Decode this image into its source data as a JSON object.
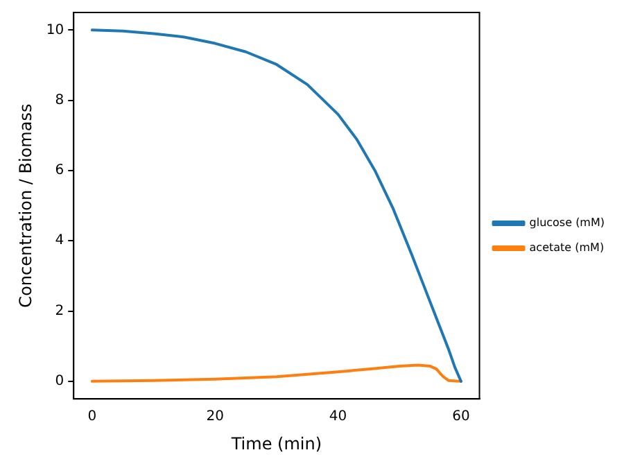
{
  "chart_data": {
    "type": "line",
    "xlabel": "Time (min)",
    "ylabel": "Concentration / Biomass",
    "xlim": [
      -3,
      63
    ],
    "xticks": [
      0,
      20,
      40,
      60
    ],
    "ylim": [
      -0.5,
      10.5
    ],
    "yticks": [
      0,
      2,
      4,
      6,
      8,
      10
    ],
    "grid": false,
    "legend": "right",
    "marker": "none",
    "line_style": "solid",
    "series": [
      {
        "name": "glucose (mM)",
        "color": "#1f77b4",
        "x": [
          0,
          5,
          10,
          15,
          20,
          25,
          30,
          35,
          40,
          43,
          46,
          49,
          52,
          54,
          56,
          58,
          59,
          60
        ],
        "values": [
          10,
          9.97,
          9.9,
          9.8,
          9.62,
          9.38,
          9.02,
          8.45,
          7.6,
          6.9,
          6.0,
          4.9,
          3.6,
          2.7,
          1.8,
          0.9,
          0.4,
          0
        ]
      },
      {
        "name": "acetate (mM)",
        "color": "#ff7f0e",
        "x": [
          0,
          10,
          20,
          30,
          40,
          45,
          50,
          53,
          55,
          56,
          57,
          58,
          60
        ],
        "values": [
          0,
          0.02,
          0.06,
          0.13,
          0.27,
          0.35,
          0.43,
          0.46,
          0.43,
          0.35,
          0.15,
          0.02,
          0
        ]
      }
    ]
  }
}
